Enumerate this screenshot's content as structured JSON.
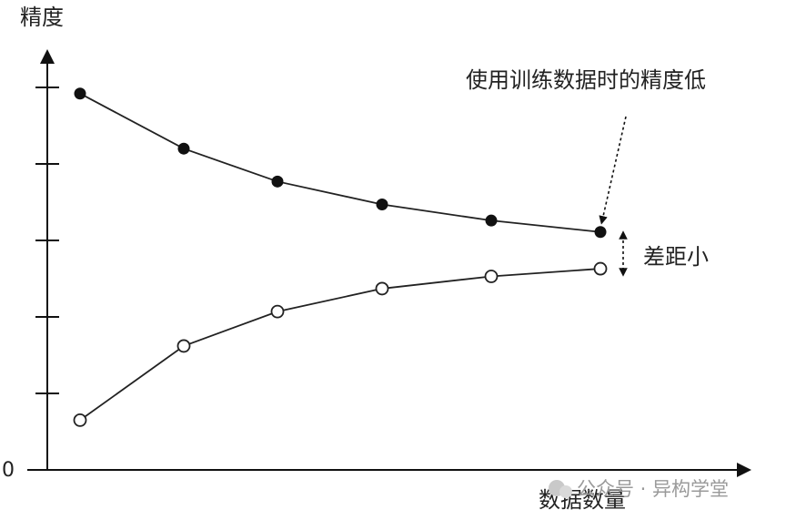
{
  "chart_data": {
    "type": "line",
    "ylabel": "精度",
    "xlabel": "数据数量",
    "y_origin_label": "0",
    "ylim": [
      0,
      5
    ],
    "y_ticks": 5,
    "grid": false,
    "x": [
      1,
      2,
      3,
      4,
      5,
      6
    ],
    "series": [
      {
        "name": "",
        "marker": "filled",
        "values": [
          4.92,
          4.2,
          3.77,
          3.47,
          3.26,
          3.11
        ]
      },
      {
        "name": "",
        "marker": "hollow",
        "values": [
          0.65,
          1.62,
          2.07,
          2.37,
          2.53,
          2.63
        ]
      }
    ],
    "annotations": [
      {
        "text": "使用训练数据时的精度低",
        "points_to": "series-0-point-6"
      },
      {
        "text": "差距小",
        "points_to": "gap-between-series-at-point-6"
      }
    ]
  },
  "watermark": {
    "text": "公众号 · 异构学堂"
  }
}
